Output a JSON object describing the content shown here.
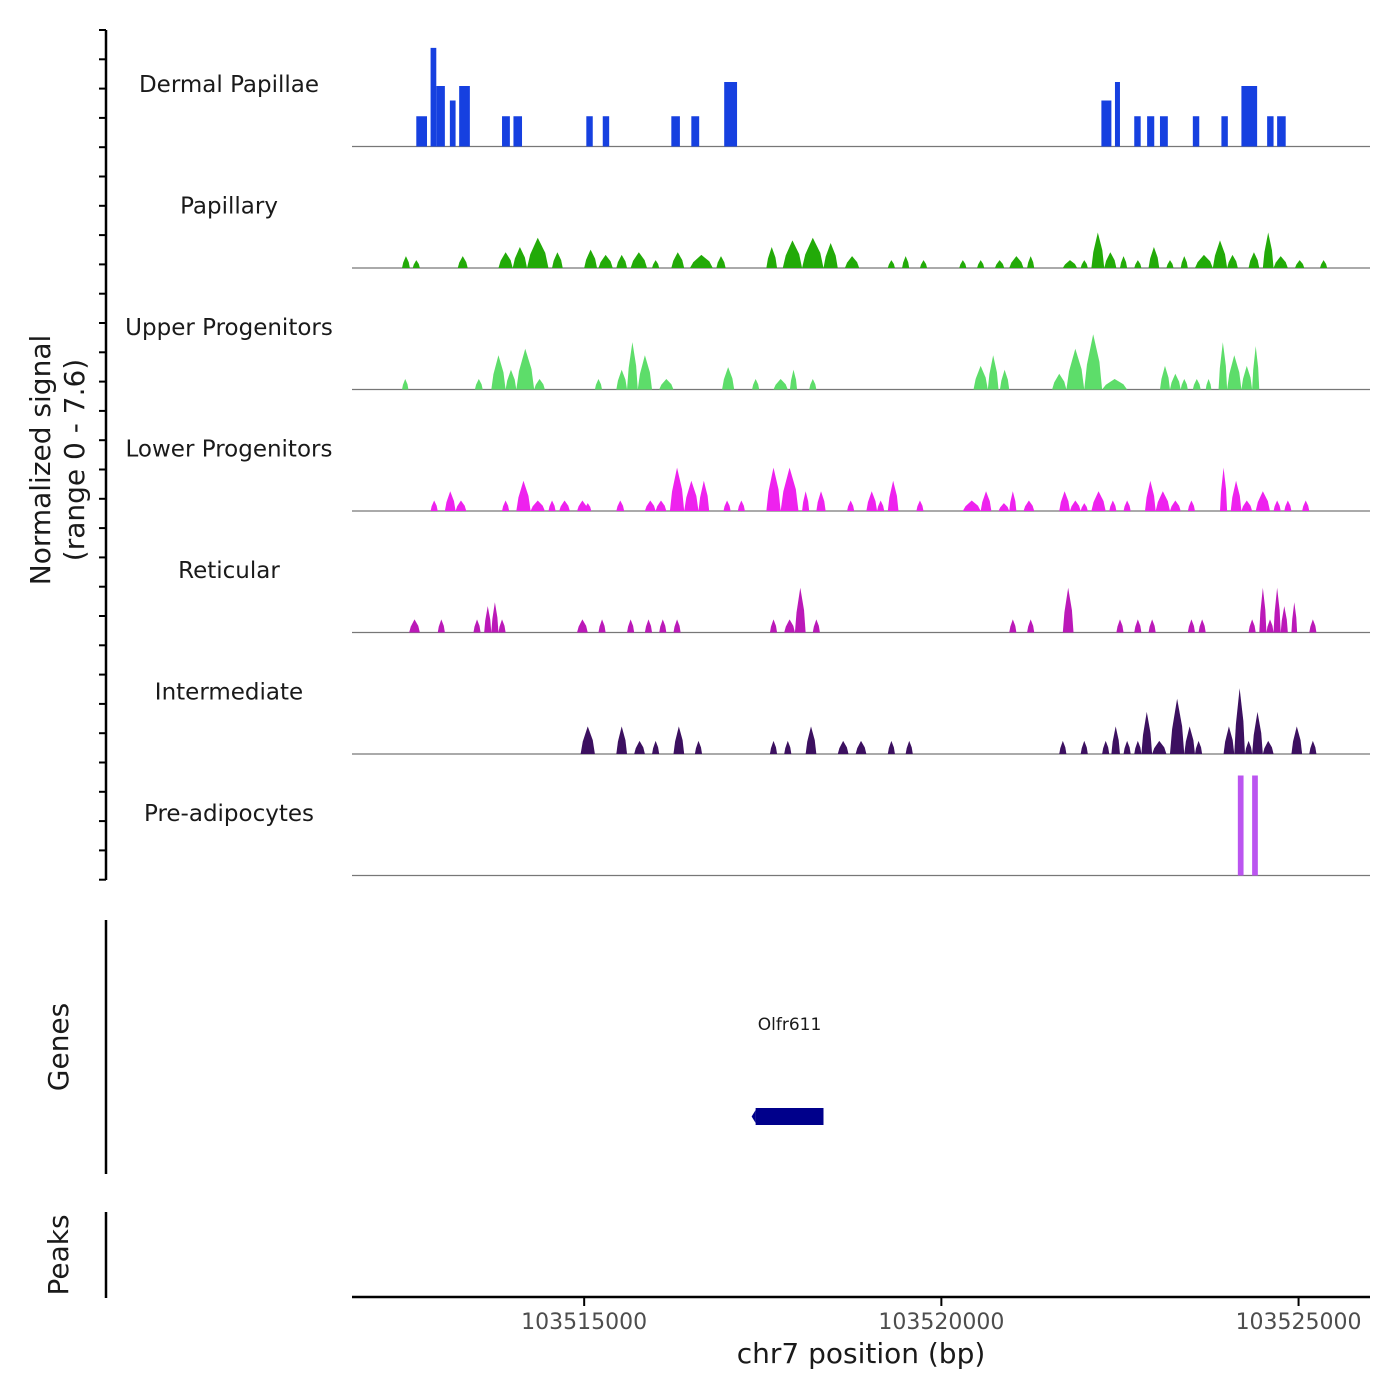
{
  "chart_data": {
    "type": "area",
    "title": "",
    "ylabel_line1": "Normalized signal",
    "ylabel_line2": "(range 0 - 7.6)",
    "ylim": [
      0,
      7.6
    ],
    "xlabel": "chr7 position (bp)",
    "xlim": [
      103511750,
      103526000
    ],
    "x_ticks": [
      103515000,
      103520000,
      103525000
    ],
    "x_tick_labels": [
      "103515000",
      "103520000",
      "103525000"
    ],
    "genes_label": "Genes",
    "peaks_label": "Peaks",
    "genes": [
      {
        "name": "Olfr611",
        "start": 103517400,
        "end": 103518350,
        "strand": "-"
      }
    ],
    "series": [
      {
        "name": "Dermal Papillae",
        "color": "#1640e0",
        "peaks": [
          [
            103512650,
            103512800,
            2.3
          ],
          [
            103512850,
            103512930,
            7.5
          ],
          [
            103512930,
            103513050,
            4.6
          ],
          [
            103513120,
            103513200,
            3.5
          ],
          [
            103513250,
            103513400,
            4.6
          ],
          [
            103513850,
            103513960,
            2.3
          ],
          [
            103514010,
            103514130,
            2.3
          ],
          [
            103515030,
            103515120,
            2.3
          ],
          [
            103515260,
            103515350,
            2.3
          ],
          [
            103516220,
            103516340,
            2.3
          ],
          [
            103516500,
            103516610,
            2.3
          ],
          [
            103516960,
            103517140,
            4.9
          ],
          [
            103522240,
            103522380,
            3.5
          ],
          [
            103522430,
            103522500,
            4.9
          ],
          [
            103522700,
            103522790,
            2.3
          ],
          [
            103522880,
            103522980,
            2.3
          ],
          [
            103523060,
            103523170,
            2.3
          ],
          [
            103523520,
            103523610,
            2.3
          ],
          [
            103523920,
            103524010,
            2.3
          ],
          [
            103524200,
            103524420,
            4.6
          ],
          [
            103524560,
            103524650,
            2.3
          ],
          [
            103524700,
            103524820,
            2.3
          ]
        ]
      },
      {
        "name": "Papillary",
        "color": "#22aa08",
        "peaks": [
          [
            103512450,
            103512560,
            0.9
          ],
          [
            103512600,
            103512700,
            0.6
          ],
          [
            103513230,
            103513370,
            0.9
          ],
          [
            103513800,
            103514000,
            1.2
          ],
          [
            103514000,
            103514200,
            1.6
          ],
          [
            103514200,
            103514500,
            2.3
          ],
          [
            103514550,
            103514700,
            1.2
          ],
          [
            103515000,
            103515180,
            1.4
          ],
          [
            103515200,
            103515400,
            1.0
          ],
          [
            103515450,
            103515600,
            1.0
          ],
          [
            103515650,
            103515880,
            1.2
          ],
          [
            103515950,
            103516050,
            0.6
          ],
          [
            103516220,
            103516400,
            1.2
          ],
          [
            103516480,
            103516800,
            1.0
          ],
          [
            103516850,
            103516980,
            0.9
          ],
          [
            103517550,
            103517700,
            1.6
          ],
          [
            103517780,
            103518050,
            2.1
          ],
          [
            103518050,
            103518350,
            2.3
          ],
          [
            103518350,
            103518550,
            1.9
          ],
          [
            103518650,
            103518850,
            0.9
          ],
          [
            103519250,
            103519350,
            0.6
          ],
          [
            103519450,
            103519550,
            0.9
          ],
          [
            103519700,
            103519800,
            0.6
          ],
          [
            103520250,
            103520350,
            0.6
          ],
          [
            103520500,
            103520600,
            0.6
          ],
          [
            103520750,
            103520880,
            0.6
          ],
          [
            103520950,
            103521150,
            0.9
          ],
          [
            103521200,
            103521300,
            0.9
          ],
          [
            103521700,
            103521900,
            0.6
          ],
          [
            103521950,
            103522050,
            0.6
          ],
          [
            103522100,
            103522280,
            2.7
          ],
          [
            103522280,
            103522450,
            1.2
          ],
          [
            103522500,
            103522600,
            0.9
          ],
          [
            103522700,
            103522800,
            0.6
          ],
          [
            103522900,
            103523050,
            1.6
          ],
          [
            103523150,
            103523250,
            0.6
          ],
          [
            103523350,
            103523450,
            0.9
          ],
          [
            103523550,
            103523800,
            1.0
          ],
          [
            103523800,
            103524000,
            2.1
          ],
          [
            103524000,
            103524150,
            1.0
          ],
          [
            103524300,
            103524450,
            1.2
          ],
          [
            103524500,
            103524650,
            2.7
          ],
          [
            103524650,
            103524850,
            0.9
          ],
          [
            103524950,
            103525080,
            0.6
          ],
          [
            103525300,
            103525400,
            0.6
          ]
        ]
      },
      {
        "name": "Upper Progenitors",
        "color": "#5ddd6a",
        "peaks": [
          [
            103512450,
            103512540,
            0.8
          ],
          [
            103513470,
            103513580,
            0.8
          ],
          [
            103513700,
            103513900,
            2.6
          ],
          [
            103513900,
            103514050,
            1.5
          ],
          [
            103514050,
            103514300,
            3.1
          ],
          [
            103514300,
            103514450,
            0.8
          ],
          [
            103515150,
            103515250,
            0.8
          ],
          [
            103515450,
            103515600,
            1.5
          ],
          [
            103515600,
            103515750,
            3.6
          ],
          [
            103515750,
            103515950,
            2.6
          ],
          [
            103516050,
            103516250,
            0.8
          ],
          [
            103516930,
            103517100,
            1.7
          ],
          [
            103517350,
            103517450,
            0.8
          ],
          [
            103517650,
            103517850,
            0.8
          ],
          [
            103517880,
            103517980,
            1.5
          ],
          [
            103518150,
            103518250,
            0.8
          ],
          [
            103520450,
            103520650,
            1.8
          ],
          [
            103520650,
            103520800,
            2.6
          ],
          [
            103520820,
            103520950,
            1.5
          ],
          [
            103521550,
            103521750,
            1.2
          ],
          [
            103521750,
            103522000,
            3.1
          ],
          [
            103522000,
            103522250,
            4.2
          ],
          [
            103522250,
            103522600,
            0.8
          ],
          [
            103523060,
            103523200,
            1.8
          ],
          [
            103523200,
            103523350,
            1.2
          ],
          [
            103523350,
            103523450,
            0.8
          ],
          [
            103523520,
            103523630,
            0.8
          ],
          [
            103523700,
            103523780,
            0.8
          ],
          [
            103523880,
            103524000,
            3.6
          ],
          [
            103524000,
            103524200,
            2.6
          ],
          [
            103524200,
            103524350,
            1.8
          ],
          [
            103524350,
            103524450,
            3.3
          ]
        ]
      },
      {
        "name": "Lower Progenitors",
        "color": "#ee22ee",
        "peaks": [
          [
            103512850,
            103512950,
            0.8
          ],
          [
            103513050,
            103513200,
            1.5
          ],
          [
            103513200,
            103513350,
            0.8
          ],
          [
            103513850,
            103513950,
            0.8
          ],
          [
            103514050,
            103514250,
            2.3
          ],
          [
            103514250,
            103514450,
            0.8
          ],
          [
            103514500,
            103514600,
            0.8
          ],
          [
            103514650,
            103514800,
            0.8
          ],
          [
            103514900,
            103515050,
            0.8
          ],
          [
            103515000,
            103515100,
            0.6
          ],
          [
            103515450,
            103515560,
            0.8
          ],
          [
            103515850,
            103516000,
            0.8
          ],
          [
            103516000,
            103516150,
            0.8
          ],
          [
            103516200,
            103516400,
            3.3
          ],
          [
            103516400,
            103516600,
            2.3
          ],
          [
            103516600,
            103516750,
            2.3
          ],
          [
            103516950,
            103517050,
            0.8
          ],
          [
            103517150,
            103517250,
            0.8
          ],
          [
            103517550,
            103517750,
            3.3
          ],
          [
            103517750,
            103518000,
            3.3
          ],
          [
            103518050,
            103518150,
            1.5
          ],
          [
            103518250,
            103518380,
            1.5
          ],
          [
            103518680,
            103518780,
            0.8
          ],
          [
            103518950,
            103519100,
            1.5
          ],
          [
            103519100,
            103519200,
            0.8
          ],
          [
            103519250,
            103519400,
            2.3
          ],
          [
            103519650,
            103519750,
            0.8
          ],
          [
            103520300,
            103520550,
            0.8
          ],
          [
            103520550,
            103520700,
            1.5
          ],
          [
            103520800,
            103520950,
            0.6
          ],
          [
            103520950,
            103521050,
            1.5
          ],
          [
            103521150,
            103521300,
            0.8
          ],
          [
            103521650,
            103521800,
            1.5
          ],
          [
            103521800,
            103521950,
            0.8
          ],
          [
            103521950,
            103522050,
            0.6
          ],
          [
            103522100,
            103522300,
            1.5
          ],
          [
            103522350,
            103522450,
            0.8
          ],
          [
            103522550,
            103522650,
            0.8
          ],
          [
            103522850,
            103523000,
            2.3
          ],
          [
            103523000,
            103523200,
            1.5
          ],
          [
            103523200,
            103523350,
            0.8
          ],
          [
            103523450,
            103523550,
            0.8
          ],
          [
            103523900,
            103524000,
            3.3
          ],
          [
            103524050,
            103524200,
            2.3
          ],
          [
            103524200,
            103524350,
            0.8
          ],
          [
            103524400,
            103524600,
            1.5
          ],
          [
            103524650,
            103524750,
            0.8
          ],
          [
            103524800,
            103524900,
            0.8
          ],
          [
            103525050,
            103525150,
            0.8
          ]
        ]
      },
      {
        "name": "Reticular",
        "color": "#bb19b8",
        "peaks": [
          [
            103512550,
            103512700,
            1.0
          ],
          [
            103512950,
            103513050,
            1.0
          ],
          [
            103513450,
            103513550,
            1.0
          ],
          [
            103513600,
            103513700,
            2.0
          ],
          [
            103513700,
            103513800,
            2.3
          ],
          [
            103513800,
            103513900,
            1.0
          ],
          [
            103514900,
            103515050,
            1.0
          ],
          [
            103515200,
            103515300,
            1.0
          ],
          [
            103515600,
            103515700,
            1.0
          ],
          [
            103515850,
            103515950,
            1.0
          ],
          [
            103516050,
            103516150,
            1.0
          ],
          [
            103516250,
            103516350,
            1.0
          ],
          [
            103517600,
            103517700,
            1.0
          ],
          [
            103517800,
            103517950,
            1.0
          ],
          [
            103517950,
            103518100,
            3.4
          ],
          [
            103518200,
            103518300,
            1.0
          ],
          [
            103520950,
            103521050,
            1.0
          ],
          [
            103521200,
            103521300,
            1.0
          ],
          [
            103521700,
            103521850,
            3.4
          ],
          [
            103522450,
            103522550,
            1.0
          ],
          [
            103522700,
            103522800,
            1.0
          ],
          [
            103522900,
            103523000,
            1.0
          ],
          [
            103523450,
            103523550,
            1.0
          ],
          [
            103523600,
            103523700,
            1.0
          ],
          [
            103524300,
            103524400,
            1.0
          ],
          [
            103524450,
            103524550,
            3.4
          ],
          [
            103524550,
            103524650,
            1.0
          ],
          [
            103524650,
            103524750,
            3.4
          ],
          [
            103524750,
            103524850,
            2.0
          ],
          [
            103524900,
            103524980,
            2.3
          ],
          [
            103525150,
            103525250,
            1.0
          ]
        ]
      },
      {
        "name": "Intermediate",
        "color": "#3c1060",
        "peaks": [
          [
            103514950,
            103515150,
            2.1
          ],
          [
            103515450,
            103515600,
            2.1
          ],
          [
            103515700,
            103515850,
            1.0
          ],
          [
            103515950,
            103516050,
            1.0
          ],
          [
            103516250,
            103516400,
            2.1
          ],
          [
            103516550,
            103516650,
            1.0
          ],
          [
            103517600,
            103517700,
            1.0
          ],
          [
            103517800,
            103517900,
            1.0
          ],
          [
            103518100,
            103518250,
            2.1
          ],
          [
            103518550,
            103518700,
            1.0
          ],
          [
            103518800,
            103518950,
            1.0
          ],
          [
            103519250,
            103519350,
            1.0
          ],
          [
            103519500,
            103519600,
            1.0
          ],
          [
            103521650,
            103521750,
            1.0
          ],
          [
            103521950,
            103522050,
            1.0
          ],
          [
            103522250,
            103522350,
            1.0
          ],
          [
            103522380,
            103522500,
            2.1
          ],
          [
            103522550,
            103522650,
            1.0
          ],
          [
            103522700,
            103522800,
            1.0
          ],
          [
            103522800,
            103522950,
            3.2
          ],
          [
            103522950,
            103523150,
            1.0
          ],
          [
            103523200,
            103523400,
            4.2
          ],
          [
            103523400,
            103523550,
            2.1
          ],
          [
            103523550,
            103523650,
            1.0
          ],
          [
            103523950,
            103524100,
            2.1
          ],
          [
            103524100,
            103524250,
            5.0
          ],
          [
            103524250,
            103524350,
            1.0
          ],
          [
            103524350,
            103524500,
            3.2
          ],
          [
            103524500,
            103524650,
            1.0
          ],
          [
            103524900,
            103525050,
            2.1
          ],
          [
            103525150,
            103525250,
            1.0
          ]
        ]
      },
      {
        "name": "Pre-adipocytes",
        "color": "#bb55f0",
        "peaks": [
          [
            103524150,
            103524230,
            7.6
          ],
          [
            103524350,
            103524430,
            7.6
          ]
        ]
      }
    ]
  }
}
